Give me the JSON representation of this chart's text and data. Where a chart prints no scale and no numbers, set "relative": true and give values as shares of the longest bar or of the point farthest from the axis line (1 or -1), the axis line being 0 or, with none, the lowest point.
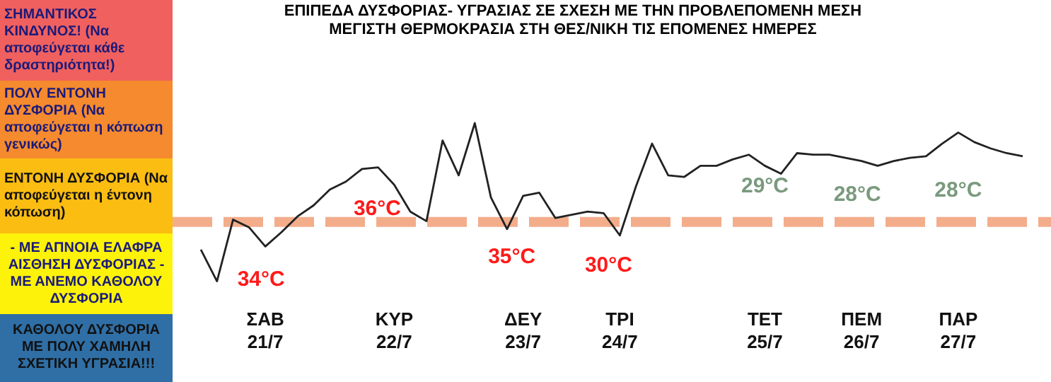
{
  "chart_data": {
    "type": "line",
    "title": "ΕΠΙΠΕΔΑ ΔΥΣΦΟΡΙΑΣ- ΥΓΡΑΣΙΑΣ ΣΕ ΣΧΕΣΗ ΜΕ ΤΗΝ ΠΡΟΒΛΕΠΟΜΕΝΗ ΜΕΣΗ ΜΕΓΙΣΤΗ ΘΕΡΜΟΚΡΑΣΙΑ ΣΤΗ ΘΕΣ/ΝΙΚΗ ΤΙΣ ΕΠΟΜΕΝΕΣ ΗΜΕΡΕΣ",
    "annotations": [
      "ΣΗΜΑΝΤΙΚΟΣ ΚΙΝΔΥΝΟΣ! (Να αποφεύγεται κάθε δραστηριότητα!)",
      "ΠΟΛΥ ΕΝΤΟΝΗ ΔΥΣΦΟΡΙΑ (Να αποφεύγεται η κόπωση γενικώς)",
      "ΕΝΤΟΝΗ ΔΥΣΦΟΡΙΑ (Να αποφεύγεται η έντονη κόπωση)",
      "- ΜΕ ΑΠΝΟΙΑ ΕΛΑΦΡΑ ΑΙΣΘΗΣΗ ΔΥΣΦΟΡΙΑΣ - ΜΕ ΑΝΕΜΟ ΚΑΘΟΛΟΥ ΔΥΣΦΟΡΙΑ",
      "ΚΑΘΟΛΟΥ ΔΥΣΦΟΡΙΑ ΜΕ ΠΟΛΥ ΧΑΜΗΛΗ ΣΧΕΤΙΚΗ ΥΓΡΑΣΙΑ!!!",
      "34°C",
      "36°C",
      "35°C",
      "30°C",
      "29°C",
      "28°C",
      "28°C"
    ],
    "relative": true,
    "marker": "none",
    "line_style": "solid",
    "categories": [
      null,
      null,
      null,
      null,
      "ΣΑΒ 21/7",
      null,
      null,
      null,
      null,
      null,
      null,
      null,
      "ΚΥΡ 22/7",
      null,
      null,
      null,
      null,
      null,
      null,
      null,
      "ΔΕΥ 23/7",
      null,
      null,
      null,
      null,
      null,
      "ΤΡΙ 24/7",
      null,
      null,
      null,
      null,
      null,
      null,
      null,
      null,
      "ΤΕΤ 25/7",
      null,
      null,
      null,
      null,
      null,
      "ΠΕΜ 26/7",
      null,
      null,
      null,
      null,
      null,
      "ΠΑΡ 27/7",
      null,
      null,
      null,
      null
    ],
    "ref_lines": [
      {
        "axis": "y",
        "value": 0.375,
        "color": "#f2a47e",
        "line_style": "dashed"
      }
    ],
    "series": [
      {
        "color": "#222222",
        "values": [
          0.2,
          0,
          0.39,
          0.34,
          0.22,
          0.31,
          0.41,
          0.48,
          0.58,
          0.63,
          0.71,
          0.72,
          0.61,
          0.44,
          0.38,
          0.89,
          0.67,
          1,
          0.53,
          0.33,
          0.54,
          0.56,
          0.4,
          0.42,
          0.44,
          0.43,
          0.29,
          0.6,
          0.87,
          0.67,
          0.66,
          0.73,
          0.73,
          0.77,
          0.8,
          0.73,
          0.68,
          0.81,
          0.8,
          0.8,
          0.78,
          0.76,
          0.73,
          0.76,
          0.78,
          0.79,
          0.87,
          0.94,
          0.88,
          0.84,
          0.81,
          0.79
        ]
      }
    ]
  }
}
